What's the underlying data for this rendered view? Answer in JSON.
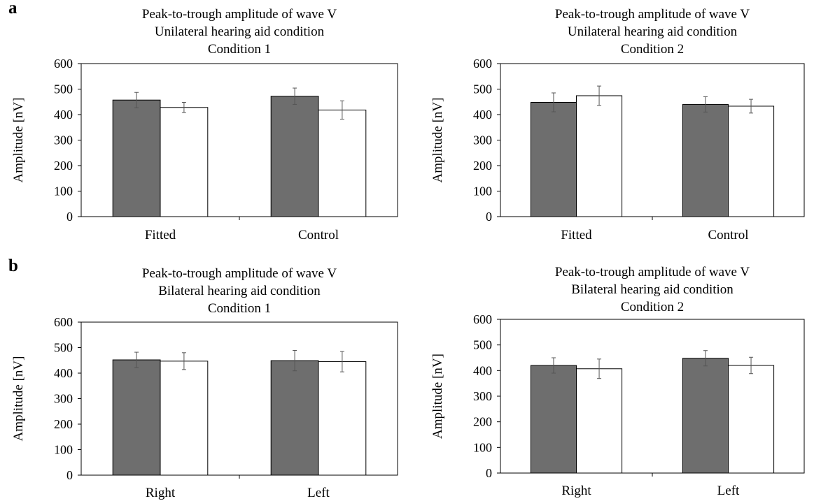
{
  "panel_labels": [
    "a",
    "b"
  ],
  "colors": {
    "bar_dark": "#6e6e6e",
    "bar_light": "#ffffff",
    "stroke": "#000000",
    "error": "#555555"
  },
  "chart_data": [
    {
      "type": "bar",
      "title_lines": [
        "Peak-to-trough amplitude of wave V",
        "Unilateral hearing aid condition",
        "Condition 1"
      ],
      "ylabel": "Amplitude [nV]",
      "ylim": [
        0,
        600
      ],
      "yticks": [
        0,
        100,
        200,
        300,
        400,
        500,
        600
      ],
      "categories": [
        "Fitted",
        "Control"
      ],
      "series": [
        {
          "values": [
            457,
            472
          ],
          "errors": [
            30,
            32
          ],
          "color": "#6e6e6e"
        },
        {
          "values": [
            428,
            418
          ],
          "errors": [
            20,
            36
          ],
          "color": "#ffffff"
        }
      ]
    },
    {
      "type": "bar",
      "title_lines": [
        "Peak-to-trough amplitude of wave V",
        "Unilateral hearing aid condition",
        "Condition 2"
      ],
      "ylabel": "Amplitude [nV]",
      "ylim": [
        0,
        600
      ],
      "yticks": [
        0,
        100,
        200,
        300,
        400,
        500,
        600
      ],
      "categories": [
        "Fitted",
        "Control"
      ],
      "series": [
        {
          "values": [
            448,
            440
          ],
          "errors": [
            37,
            30
          ],
          "color": "#6e6e6e"
        },
        {
          "values": [
            474,
            433
          ],
          "errors": [
            38,
            27
          ],
          "color": "#ffffff"
        }
      ]
    },
    {
      "type": "bar",
      "title_lines": [
        "Peak-to-trough amplitude of wave V",
        "Bilateral hearing aid condition",
        "Condition 1"
      ],
      "ylabel": "Amplitude [nV]",
      "ylim": [
        0,
        600
      ],
      "yticks": [
        0,
        100,
        200,
        300,
        400,
        500,
        600
      ],
      "categories": [
        "Right",
        "Left"
      ],
      "series": [
        {
          "values": [
            452,
            449
          ],
          "errors": [
            30,
            40
          ],
          "color": "#6e6e6e"
        },
        {
          "values": [
            447,
            445
          ],
          "errors": [
            33,
            40
          ],
          "color": "#ffffff"
        }
      ]
    },
    {
      "type": "bar",
      "title_lines": [
        "Peak-to-trough amplitude of wave V",
        "Bilateral hearing aid condition",
        "Condition 2"
      ],
      "ylabel": "Amplitude [nV]",
      "ylim": [
        0,
        600
      ],
      "yticks": [
        0,
        100,
        200,
        300,
        400,
        500,
        600
      ],
      "categories": [
        "Right",
        "Left"
      ],
      "series": [
        {
          "values": [
            420,
            448
          ],
          "errors": [
            30,
            30
          ],
          "color": "#6e6e6e"
        },
        {
          "values": [
            407,
            420
          ],
          "errors": [
            38,
            32
          ],
          "color": "#ffffff"
        }
      ]
    }
  ]
}
